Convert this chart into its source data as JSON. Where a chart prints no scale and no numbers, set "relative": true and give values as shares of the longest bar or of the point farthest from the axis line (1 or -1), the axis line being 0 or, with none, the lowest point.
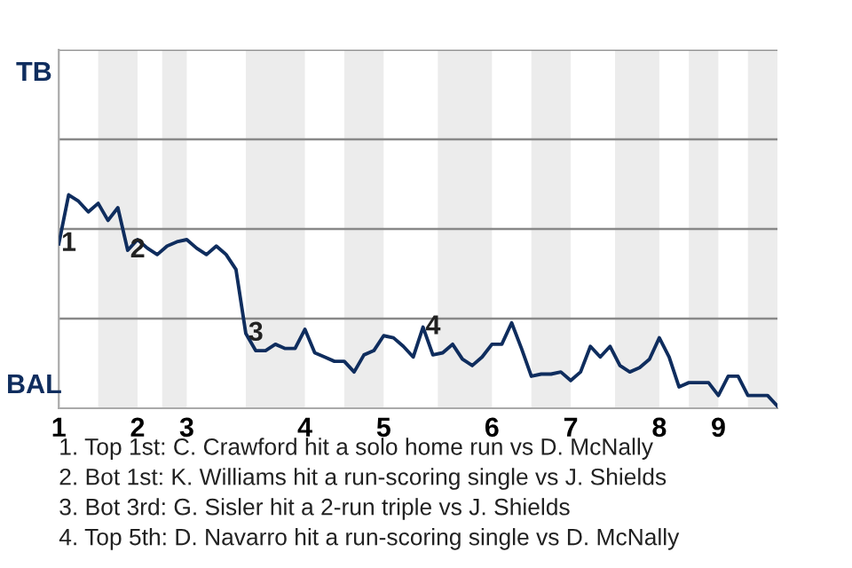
{
  "chart_data": {
    "type": "line",
    "relative": true,
    "categories": [
      "1",
      null,
      null,
      null,
      null,
      null,
      null,
      null,
      "2",
      null,
      null,
      null,
      null,
      "3",
      null,
      null,
      null,
      null,
      null,
      null,
      null,
      null,
      null,
      null,
      null,
      "4",
      null,
      null,
      null,
      null,
      null,
      null,
      null,
      "5",
      null,
      null,
      null,
      null,
      null,
      null,
      null,
      null,
      null,
      null,
      "6",
      null,
      null,
      null,
      null,
      null,
      null,
      null,
      "7",
      null,
      null,
      null,
      null,
      null,
      null,
      null,
      null,
      "8",
      null,
      null,
      null,
      null,
      null,
      "9",
      null,
      null,
      null,
      null,
      null,
      null
    ],
    "series": [
      {
        "color": "#0f2d5e",
        "values": [
          0.77,
          1,
          0.97,
          0.92,
          0.96,
          0.88,
          0.94,
          0.74,
          0.79,
          0.75,
          0.72,
          0.76,
          0.78,
          0.79,
          0.75,
          0.72,
          0.76,
          0.72,
          0.65,
          0.35,
          0.27,
          0.27,
          0.3,
          0.28,
          0.28,
          0.37,
          0.26,
          0.24,
          0.22,
          0.22,
          0.17,
          0.25,
          0.27,
          0.34,
          0.33,
          0.29,
          0.24,
          0.38,
          0.25,
          0.26,
          0.3,
          0.23,
          0.2,
          0.24,
          0.3,
          0.3,
          0.4,
          0.28,
          0.15,
          0.16,
          0.16,
          0.17,
          0.13,
          0.17,
          0.29,
          0.24,
          0.29,
          0.2,
          0.17,
          0.19,
          0.23,
          0.33,
          0.24,
          0.1,
          0.12,
          0.12,
          0.12,
          0.06,
          0.15,
          0.15,
          0.06,
          0.06,
          0.06,
          0.01
        ]
      }
    ],
    "ref_lines": [
      {
        "axis": "y",
        "value": 0.42,
        "color": "#888888"
      },
      {
        "axis": "y",
        "value": 0.84,
        "color": "#888888"
      },
      {
        "axis": "y",
        "value": 1.26,
        "color": "#888888"
      },
      {
        "axis": "y",
        "value": 1.68,
        "color": "#888888"
      }
    ],
    "line_style": "solid",
    "marker": "none",
    "annotations": [
      "TB",
      "BAL",
      {
        "text": "1",
        "y": 0.77
      },
      {
        "text": "2",
        "y": 0.74
      },
      {
        "text": "3",
        "y": 0.35
      },
      {
        "text": "4",
        "y": 0.38
      },
      "1. Top 1st: C. Crawford hit a solo home run vs D. McNally",
      "2. Bot 1st: K. Williams hit a run-scoring single vs J. Shields",
      "3. Bot 3rd: G. Sisler hit a 2-run triple vs J. Shields",
      "4. Top 5th: D. Navarro hit a run-scoring single vs D. McNally"
    ]
  }
}
